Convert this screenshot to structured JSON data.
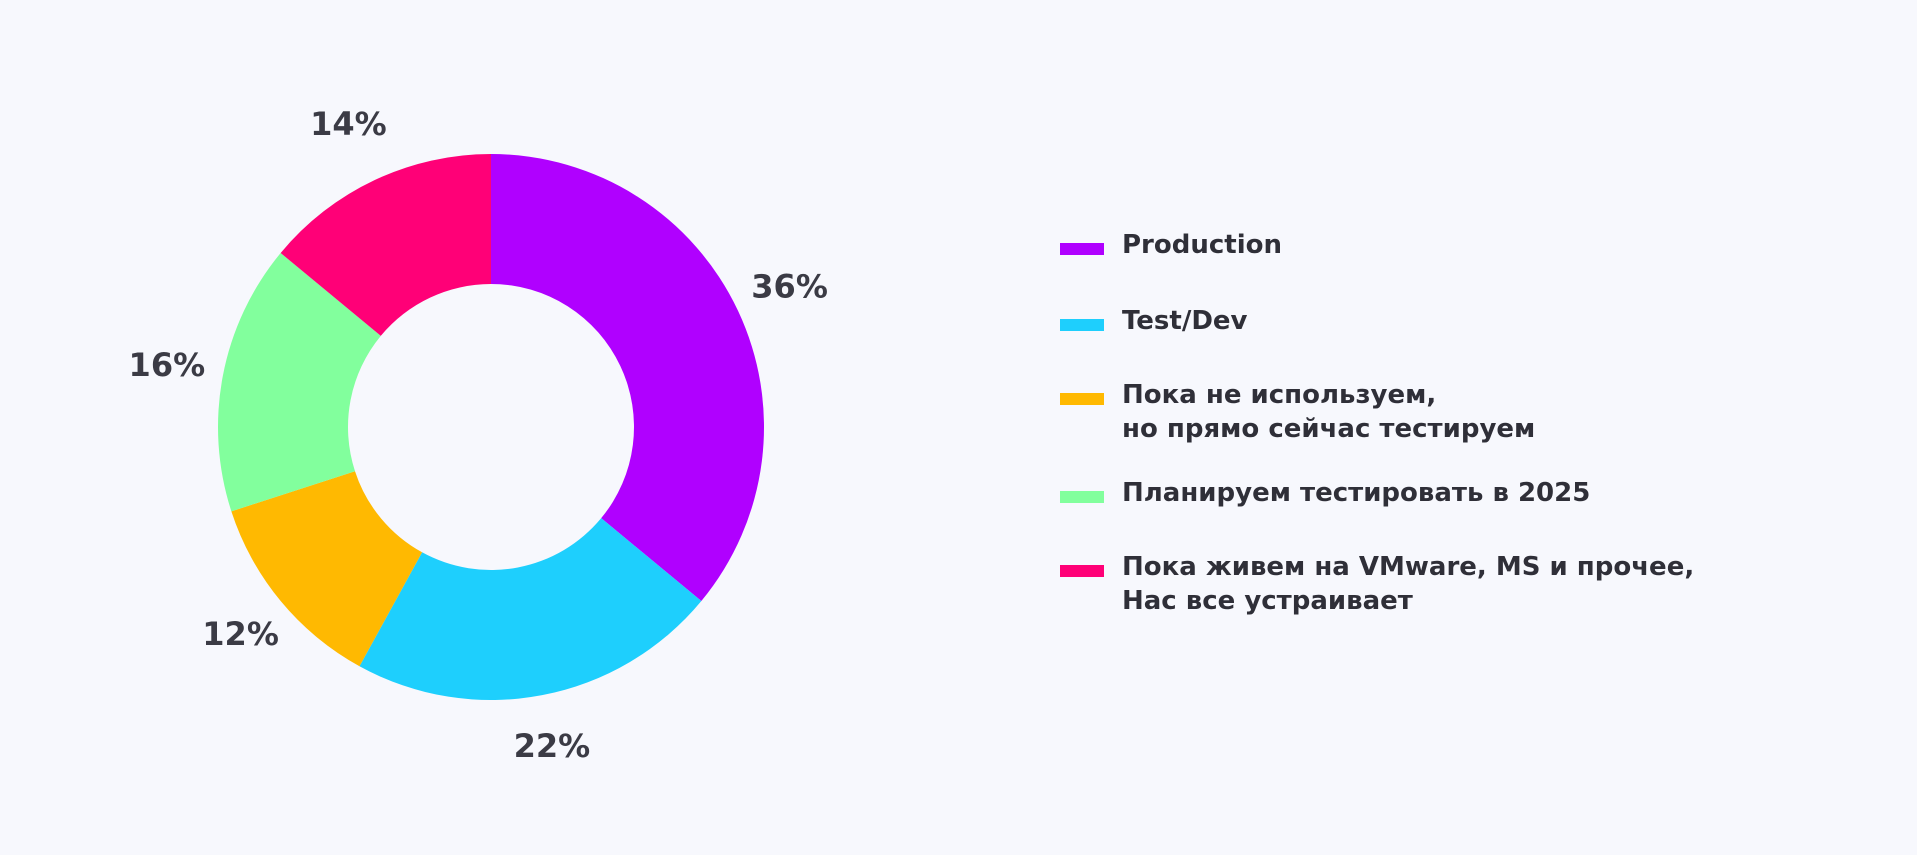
{
  "colors": {
    "background": "#f7f8fd",
    "label_text": "#3b3b45"
  },
  "chart_data": {
    "type": "pie",
    "donut": true,
    "categories": [
      "Production",
      "Test/Dev",
      "Пока не используем, но прямо сейчас тестируем",
      "Планируем тестировать в 2025",
      "Пока живем на VMware, MS и прочее, Нас все устраивает"
    ],
    "values": [
      36,
      22,
      12,
      16,
      14
    ],
    "value_labels": [
      "36%",
      "22%",
      "12%",
      "16%",
      "14%"
    ],
    "unit": "%",
    "colors": [
      "#b000ff",
      "#1ecffd",
      "#ffb901",
      "#82ff9d",
      "#ff0077"
    ],
    "legend_position": "right"
  },
  "legend": [
    {
      "lines": [
        "Production"
      ],
      "color": "#b000ff"
    },
    {
      "lines": [
        "Test/Dev"
      ],
      "color": "#1ecffd"
    },
    {
      "lines": [
        "Пока не используем,",
        "но прямо сейчас тестируем"
      ],
      "color": "#ffb901"
    },
    {
      "lines": [
        "Планируем тестировать в 2025"
      ],
      "color": "#82ff9d"
    },
    {
      "lines": [
        "Пока живем на VMware, MS и прочее,",
        "Нас все устраивает"
      ],
      "color": "#ff0077"
    }
  ]
}
